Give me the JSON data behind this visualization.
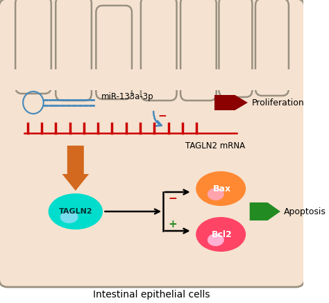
{
  "bg_color": "#f5e2d0",
  "cell_outline_color": "#999080",
  "title_text": "Intestinal epithelial cells",
  "title_fontsize": 10,
  "mir_label": "miR-133a-3p",
  "tagln2_mrna_label": "TAGLN2 mRNA",
  "tagln2_label": "TAGLN2",
  "bax_label": "Bax",
  "bcl2_label": "Bcl2",
  "proliferation_label": "Proliferation",
  "apoptosis_label": "Apoptosis",
  "minus_color": "#cc0000",
  "plus_color": "#228b22",
  "red_arrow_color": "#8b0000",
  "green_arrow_color": "#228b22",
  "orange_color": "#d2691e",
  "mrna_line_color": "#cc0000",
  "blue_color": "#4488bb",
  "tagln2_fill": "#00ddcc",
  "bax_fill": "#ff8833",
  "bcl2_fill": "#ff4466",
  "white_glow": "#ffffff"
}
